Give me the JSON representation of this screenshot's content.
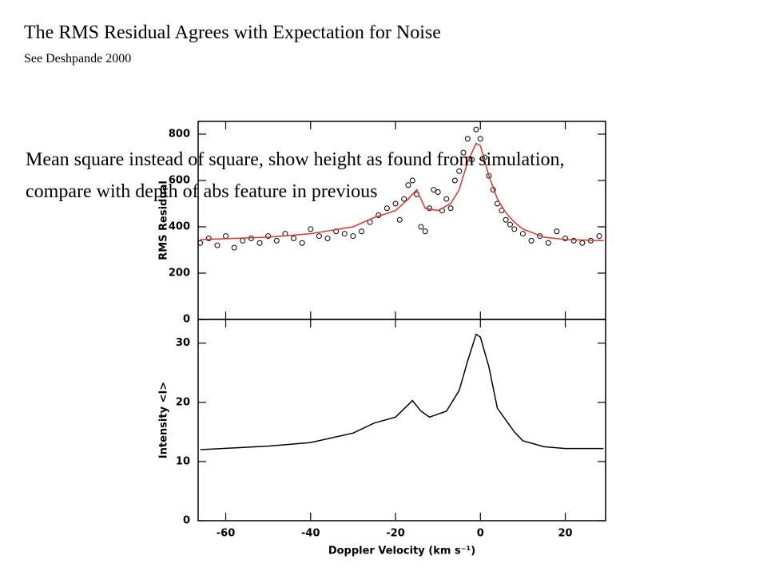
{
  "title": "The RMS Residual Agrees with Expectation for Noise",
  "subtitle": "See Deshpande 2000",
  "annotation": "Mean square instead of square, show height as found from simulation, compare with depth of abs feature in previous",
  "chart_data": [
    {
      "type": "scatter",
      "ylabel": "RMS Residual",
      "xlim": [
        -66.5,
        29.5
      ],
      "xticks": [
        -60,
        -40,
        -20,
        0,
        20
      ],
      "ylim": [
        0,
        855
      ],
      "yticks": [
        0,
        200,
        400,
        600,
        800
      ],
      "series": [
        {
          "type": "scatter",
          "color": "#000000",
          "x": [
            -66,
            -64,
            -62,
            -60,
            -58,
            -56,
            -54,
            -52,
            -50,
            -48,
            -46,
            -44,
            -42,
            -40,
            -38,
            -36,
            -34,
            -32,
            -30,
            -28,
            -26,
            -24,
            -22,
            -20,
            -19,
            -18,
            -17,
            -16,
            -15,
            -14,
            -13,
            -12,
            -11,
            -10,
            -9,
            -8,
            -7,
            -6,
            -5,
            -4,
            -3,
            -2,
            -1,
            0,
            1,
            2,
            3,
            4,
            5,
            6,
            7,
            8,
            10,
            12,
            14,
            16,
            18,
            20,
            22,
            24,
            26,
            28
          ],
          "values": [
            330,
            350,
            320,
            360,
            310,
            340,
            350,
            330,
            360,
            340,
            370,
            350,
            330,
            390,
            360,
            350,
            380,
            370,
            360,
            380,
            420,
            450,
            480,
            500,
            430,
            520,
            580,
            600,
            540,
            400,
            380,
            480,
            560,
            550,
            470,
            520,
            480,
            600,
            640,
            720,
            780,
            690,
            820,
            780,
            700,
            620,
            560,
            500,
            470,
            430,
            410,
            390,
            370,
            340,
            360,
            330,
            380,
            350,
            340,
            330,
            340,
            360
          ]
        },
        {
          "type": "line",
          "color": "#e8302a",
          "x": [
            -66,
            -50,
            -40,
            -30,
            -25,
            -20,
            -17,
            -15,
            -13,
            -10,
            -7,
            -5,
            -3,
            -1,
            0,
            2,
            4,
            6,
            8,
            10,
            15,
            20,
            29
          ],
          "values": [
            345,
            355,
            370,
            400,
            440,
            470,
            520,
            560,
            480,
            470,
            500,
            560,
            680,
            760,
            750,
            620,
            520,
            460,
            420,
            390,
            355,
            345,
            340
          ]
        }
      ]
    },
    {
      "type": "line",
      "xlabel": "Doppler Velocity (km s⁻¹)",
      "ylabel": "Intensity <I>",
      "xlim": [
        -66.5,
        29.5
      ],
      "xticks": [
        -60,
        -40,
        -20,
        0,
        20
      ],
      "ylim": [
        0,
        34
      ],
      "yticks": [
        0,
        10,
        20,
        30
      ],
      "color": "#000000",
      "x": [
        -66,
        -50,
        -40,
        -30,
        -25,
        -20,
        -16,
        -14,
        -12,
        -8,
        -5,
        -3,
        -1,
        0,
        2,
        4,
        6,
        8,
        10,
        15,
        20,
        29
      ],
      "values": [
        12,
        12.6,
        13.2,
        14.8,
        16.5,
        17.5,
        20.3,
        18.5,
        17.5,
        18.5,
        22,
        27,
        31.5,
        31,
        26,
        19,
        17,
        15,
        13.5,
        12.5,
        12.2,
        12.2
      ]
    }
  ]
}
